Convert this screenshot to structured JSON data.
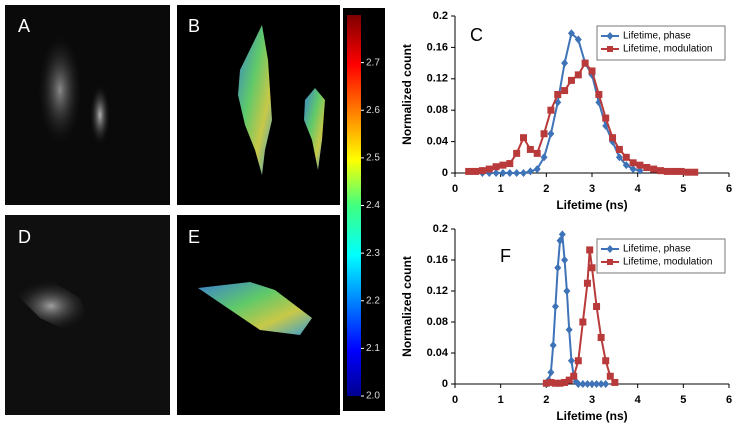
{
  "panels": [
    {
      "label": "A"
    },
    {
      "label": "B"
    },
    {
      "label": "D"
    },
    {
      "label": "E"
    }
  ],
  "colorbar": {
    "lim": [
      2.0,
      2.8
    ],
    "ticks": [
      {
        "value": 2.0,
        "label": "2.0"
      },
      2.1,
      2.2,
      2.3,
      2.4,
      2.5,
      2.6,
      2.7
    ]
  },
  "chart_data": [
    {
      "type": "line",
      "panel_label": "C",
      "xlabel": "Lifetime (ns)",
      "ylabel": "Normalized count",
      "xlim": [
        0,
        6
      ],
      "xticks": [
        0,
        1,
        2,
        3,
        4,
        5,
        6
      ],
      "ylim": [
        0,
        0.2
      ],
      "yticks": [
        0,
        0.04,
        0.08,
        0.12,
        0.16,
        0.2
      ],
      "legend": "upper right",
      "series": [
        {
          "name": "Lifetime, phase",
          "color": "#3f73b8",
          "marker": "diamond",
          "x": [
            0.6,
            0.75,
            0.9,
            1.05,
            1.2,
            1.35,
            1.5,
            1.65,
            1.8,
            1.95,
            2.1,
            2.25,
            2.4,
            2.55,
            2.7,
            2.85,
            3.0,
            3.15,
            3.3,
            3.45,
            3.6,
            3.75,
            3.9,
            4.05
          ],
          "values": [
            0,
            0,
            0,
            0,
            0,
            0,
            0,
            0.002,
            0.005,
            0.02,
            0.05,
            0.09,
            0.14,
            0.178,
            0.17,
            0.14,
            0.125,
            0.09,
            0.06,
            0.04,
            0.02,
            0.01,
            0.005,
            0.003
          ]
        },
        {
          "name": "Lifetime, modulation",
          "color": "#b83a3a",
          "marker": "square",
          "x": [
            0.3,
            0.45,
            0.6,
            0.75,
            0.9,
            1.05,
            1.2,
            1.35,
            1.5,
            1.65,
            1.8,
            1.95,
            2.1,
            2.25,
            2.4,
            2.55,
            2.7,
            2.85,
            3.0,
            3.15,
            3.3,
            3.45,
            3.6,
            3.75,
            3.9,
            4.05,
            4.2,
            4.35,
            4.5,
            4.65,
            4.8,
            4.95,
            5.1,
            5.25
          ],
          "values": [
            0.002,
            0.002,
            0.003,
            0.005,
            0.008,
            0.01,
            0.012,
            0.025,
            0.045,
            0.03,
            0.025,
            0.05,
            0.08,
            0.1,
            0.105,
            0.118,
            0.125,
            0.14,
            0.13,
            0.1,
            0.07,
            0.045,
            0.03,
            0.02,
            0.013,
            0.01,
            0.007,
            0.005,
            0.003,
            0.002,
            0.002,
            0.002,
            0.001,
            0.001
          ]
        }
      ]
    },
    {
      "type": "line",
      "panel_label": "F",
      "xlabel": "Lifetime (ns)",
      "ylabel": "Normalized count",
      "xlim": [
        0,
        6
      ],
      "xticks": [
        0,
        1,
        2,
        3,
        4,
        5,
        6
      ],
      "ylim": [
        0,
        0.2
      ],
      "yticks": [
        0,
        0.04,
        0.08,
        0.12,
        0.16,
        0.2
      ],
      "legend": "upper right",
      "series": [
        {
          "name": "Lifetime, phase",
          "color": "#3f73b8",
          "marker": "diamond",
          "x": [
            2.0,
            2.05,
            2.1,
            2.15,
            2.2,
            2.25,
            2.3,
            2.35,
            2.4,
            2.45,
            2.5,
            2.55,
            2.6,
            2.65,
            2.7,
            2.8,
            2.9,
            3.0,
            3.1,
            3.2,
            3.3
          ],
          "values": [
            0,
            0.005,
            0.015,
            0.05,
            0.1,
            0.15,
            0.185,
            0.193,
            0.16,
            0.12,
            0.07,
            0.03,
            0.01,
            0.003,
            0,
            0,
            0,
            0,
            0,
            0,
            0
          ]
        },
        {
          "name": "Lifetime, modulation",
          "color": "#b83a3a",
          "marker": "square",
          "x": [
            2.0,
            2.1,
            2.2,
            2.3,
            2.4,
            2.5,
            2.6,
            2.7,
            2.8,
            2.9,
            2.95,
            3.0,
            3.1,
            3.2,
            3.3,
            3.4,
            3.5
          ],
          "values": [
            0.001,
            0.002,
            0.001,
            0.001,
            0.002,
            0.005,
            0.01,
            0.03,
            0.08,
            0.13,
            0.173,
            0.15,
            0.1,
            0.06,
            0.03,
            0.01,
            0.002
          ]
        }
      ]
    }
  ]
}
